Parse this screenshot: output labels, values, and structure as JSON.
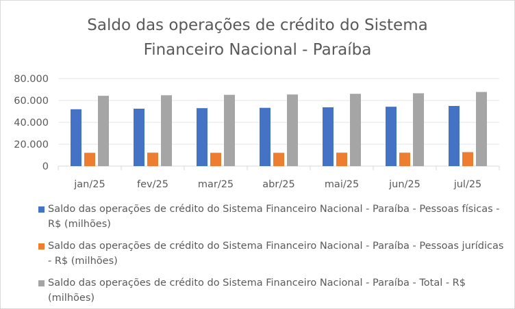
{
  "chart_data": {
    "type": "bar",
    "title_lines": [
      "Saldo das operações de crédito do Sistema",
      "Financeiro Nacional - Paraíba"
    ],
    "categories": [
      "jan/25",
      "fev/25",
      "mar/25",
      "abr/25",
      "mai/25",
      "jun/25",
      "jul/25"
    ],
    "y_ticks": [
      "0",
      "20.000",
      "40.000",
      "60.000",
      "80.000"
    ],
    "ylim": [
      0,
      80000
    ],
    "grid": true,
    "legend_position": "bottom",
    "series": [
      {
        "name": "Saldo das operações de crédito do Sistema Financeiro Nacional - Paraíba - Pessoas físicas - R$ (milhões)",
        "color": "#4472c4",
        "values": [
          52000,
          52500,
          53000,
          53300,
          53800,
          54300,
          55000
        ]
      },
      {
        "name": "Saldo das operações de crédito do Sistema Financeiro Nacional - Paraíba - Pessoas jurídicas - R$ (milhões)",
        "color": "#ed7d31",
        "values": [
          12200,
          12300,
          12200,
          12200,
          12300,
          12300,
          12800
        ]
      },
      {
        "name": "Saldo das operações de crédito do Sistema Financeiro Nacional - Paraíba - Total - R$ (milhões)",
        "color": "#a5a5a5",
        "values": [
          64300,
          64800,
          65200,
          65500,
          66100,
          66600,
          67800
        ]
      }
    ]
  }
}
